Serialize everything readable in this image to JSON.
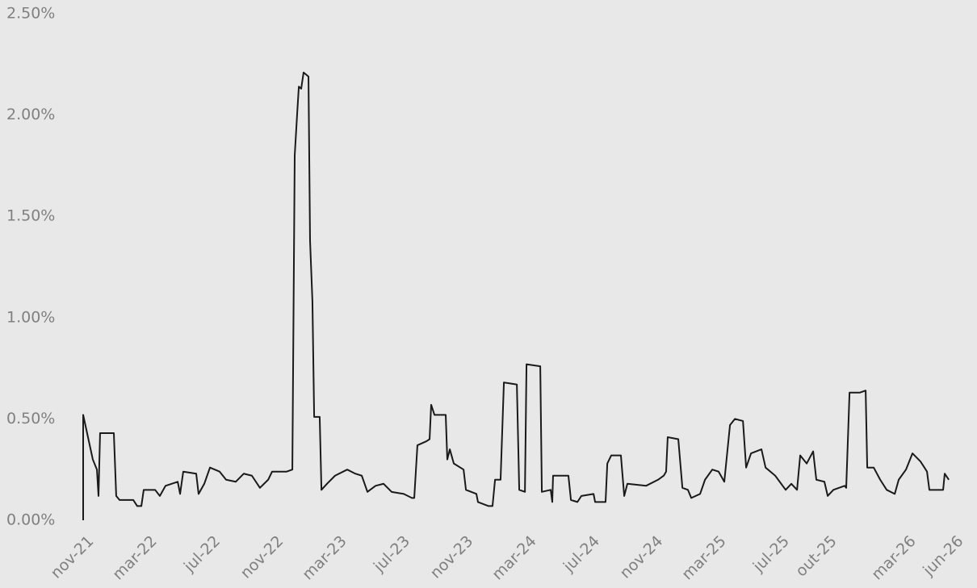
{
  "chart_data": {
    "type": "line",
    "x": [
      0,
      0,
      0.61,
      0.87,
      0.97,
      1.07,
      1.94,
      2.09,
      2.3,
      3.17,
      3.42,
      3.68,
      3.83,
      4.55,
      4.85,
      5.21,
      5.98,
      6.13,
      6.33,
      7.15,
      7.3,
      7.66,
      8.02,
      8.63,
      9.04,
      9.65,
      10.16,
      10.67,
      11.18,
      11.7,
      11.95,
      12.87,
      13.23,
      13.38,
      13.53,
      13.64,
      13.79,
      13.94,
      14.25,
      14.35,
      14.5,
      14.61,
      14.96,
      15.07,
      15.42,
      15.93,
      16.7,
      17.21,
      17.62,
      17.98,
      18.49,
      19.0,
      19.51,
      20.28,
      20.79,
      20.94,
      21.14,
      21.71,
      21.91,
      22.01,
      22.22,
      22.93,
      23.03,
      23.19,
      23.44,
      24.06,
      24.21,
      24.87,
      24.97,
      25.64,
      25.89,
      26.05,
      26.4,
      26.61,
      27.43,
      27.58,
      27.94,
      28.04,
      28.91,
      29.01,
      29.57,
      29.67,
      29.72,
      30.69,
      30.85,
      31.26,
      31.51,
      32.28,
      32.38,
      33.04,
      33.15,
      33.4,
      34.01,
      34.22,
      34.42,
      35.6,
      36.36,
      36.72,
      36.87,
      36.97,
      37.64,
      37.9,
      38.25,
      38.46,
      39.02,
      39.33,
      39.79,
      40.19,
      40.55,
      40.91,
      41.22,
      41.73,
      41.93,
      42.24,
      42.9,
      43.16,
      43.77,
      44.43,
      44.79,
      45.15,
      45.35,
      45.76,
      46.17,
      46.37,
      46.88,
      47.09,
      47.45,
      48.16,
      48.26,
      48.47,
      49.13,
      49.49,
      49.59,
      50.0,
      50.41,
      50.82,
      51.33,
      51.58,
      52.04,
      52.45,
      52.96,
      53.37,
      53.52,
      54.39,
      54.49,
      54.75
    ],
    "series": [
      {
        "color": "#1a1a1a",
        "values": [
          0,
          0.52,
          0.3,
          0.25,
          0.12,
          0.43,
          0.43,
          0.12,
          0.1,
          0.1,
          0.07,
          0.07,
          0.15,
          0.15,
          0.12,
          0.17,
          0.19,
          0.13,
          0.24,
          0.23,
          0.13,
          0.18,
          0.26,
          0.24,
          0.2,
          0.19,
          0.23,
          0.22,
          0.16,
          0.2,
          0.24,
          0.24,
          0.25,
          1.8,
          2.0,
          2.14,
          2.13,
          2.21,
          2.19,
          1.38,
          1.08,
          0.51,
          0.51,
          0.15,
          0.18,
          0.22,
          0.25,
          0.23,
          0.22,
          0.14,
          0.17,
          0.18,
          0.14,
          0.13,
          0.11,
          0.11,
          0.37,
          0.39,
          0.4,
          0.57,
          0.52,
          0.52,
          0.3,
          0.35,
          0.28,
          0.25,
          0.15,
          0.13,
          0.09,
          0.07,
          0.07,
          0.2,
          0.2,
          0.68,
          0.67,
          0.15,
          0.14,
          0.77,
          0.76,
          0.14,
          0.15,
          0.09,
          0.22,
          0.22,
          0.1,
          0.09,
          0.12,
          0.13,
          0.09,
          0.09,
          0.28,
          0.32,
          0.32,
          0.12,
          0.18,
          0.17,
          0.2,
          0.22,
          0.24,
          0.41,
          0.4,
          0.16,
          0.15,
          0.11,
          0.13,
          0.2,
          0.25,
          0.24,
          0.19,
          0.47,
          0.5,
          0.49,
          0.26,
          0.33,
          0.35,
          0.26,
          0.22,
          0.15,
          0.18,
          0.15,
          0.32,
          0.28,
          0.34,
          0.2,
          0.19,
          0.12,
          0.15,
          0.17,
          0.16,
          0.63,
          0.63,
          0.64,
          0.26,
          0.26,
          0.2,
          0.15,
          0.13,
          0.2,
          0.25,
          0.33,
          0.29,
          0.24,
          0.15,
          0.15,
          0.23,
          0.2
        ]
      }
    ],
    "xlim": [
      0,
      55
    ],
    "ylim": [
      0,
      2.5
    ],
    "xticks": [
      {
        "value": 0,
        "label": "nov-21"
      },
      {
        "value": 4,
        "label": "mar-22"
      },
      {
        "value": 8,
        "label": "jul-22"
      },
      {
        "value": 12,
        "label": "nov-22"
      },
      {
        "value": 16,
        "label": "mar-23"
      },
      {
        "value": 20,
        "label": "jul-23"
      },
      {
        "value": 24,
        "label": "nov-23"
      },
      {
        "value": 28,
        "label": "mar-24"
      },
      {
        "value": 32,
        "label": "jul-24"
      },
      {
        "value": 36,
        "label": "nov-24"
      },
      {
        "value": 40,
        "label": "mar-25"
      },
      {
        "value": 44,
        "label": "jul-25"
      },
      {
        "value": 47,
        "label": "out-25"
      },
      {
        "value": 52,
        "label": "mar-26"
      },
      {
        "value": 55,
        "label": "jun-26"
      }
    ],
    "yticks": [
      {
        "value": 0,
        "label": "0.00%"
      },
      {
        "value": 0.5,
        "label": "0.50%"
      },
      {
        "value": 1,
        "label": "1.00%"
      },
      {
        "value": 1.5,
        "label": "1.50%"
      },
      {
        "value": 2,
        "label": "2.00%"
      },
      {
        "value": 2.5,
        "label": "2.50%"
      }
    ],
    "grid": false
  }
}
